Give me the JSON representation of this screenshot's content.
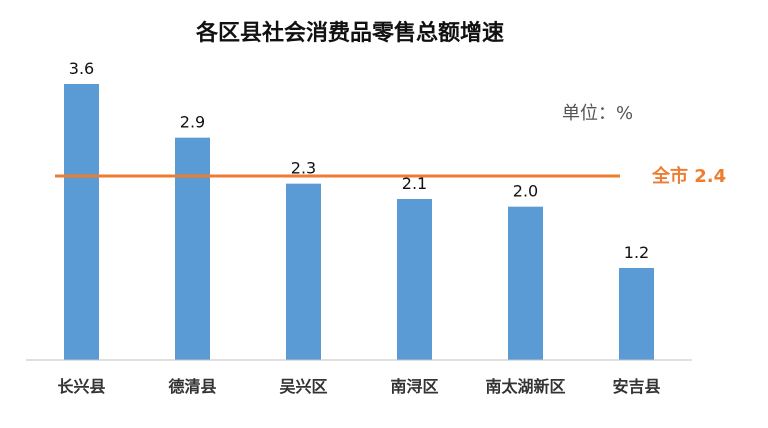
{
  "chart_data": {
    "type": "bar",
    "title": "各区县社会消费品零售总额增速",
    "unit_label": "单位：%",
    "categories": [
      "长兴县",
      "德清县",
      "吴兴区",
      "南浔区",
      "南太湖新区",
      "安吉县"
    ],
    "values": [
      3.6,
      2.9,
      2.3,
      2.1,
      2.0,
      1.2
    ],
    "value_labels": [
      "3.6",
      "2.9",
      "2.3",
      "2.1",
      "2.0",
      "1.2"
    ],
    "reference_line": {
      "value": 2.4,
      "label": "全市 2.4"
    },
    "xlabel": "",
    "ylabel": "",
    "ylim": [
      0,
      3.6
    ],
    "grid": false,
    "legend": "none",
    "colors": {
      "bar": "#5B9BD5",
      "reference_line": "#ED7D31",
      "axis": "#BFBFBF"
    }
  }
}
